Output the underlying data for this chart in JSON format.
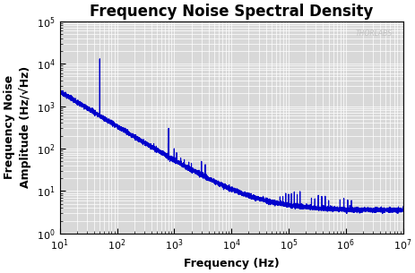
{
  "title": "Frequency Noise Spectral Density",
  "xlabel": "Frequency (Hz)",
  "ylabel": "Frequency Noise\nAmplitude (Hz/√Hz)",
  "xlim": [
    10,
    10000000.0
  ],
  "ylim": [
    1,
    100000.0
  ],
  "line_color": "#0000CC",
  "line_width": 0.8,
  "bg_color": "#d8d8d8",
  "grid_color": "#ffffff",
  "watermark": "THORLABS",
  "title_fontsize": 12,
  "label_fontsize": 9,
  "tick_fontsize": 8
}
